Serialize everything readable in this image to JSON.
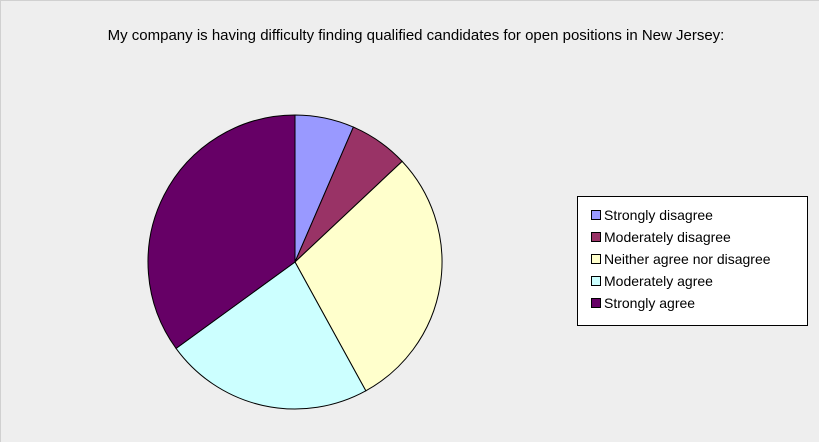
{
  "chart_data": {
    "type": "pie",
    "title": "My company is having difficulty finding qualified candidates for open positions in New Jersey:",
    "categories": [
      "Strongly disagree",
      "Moderately disagree",
      "Neither agree nor disagree",
      "Moderately agree",
      "Strongly agree"
    ],
    "values": [
      6.5,
      6.5,
      29,
      23,
      35
    ],
    "colors": [
      "#9999ff",
      "#993366",
      "#ffffcc",
      "#ccffff",
      "#660066"
    ],
    "legend_position": "right",
    "start_angle_deg": 0,
    "direction": "clockwise"
  }
}
